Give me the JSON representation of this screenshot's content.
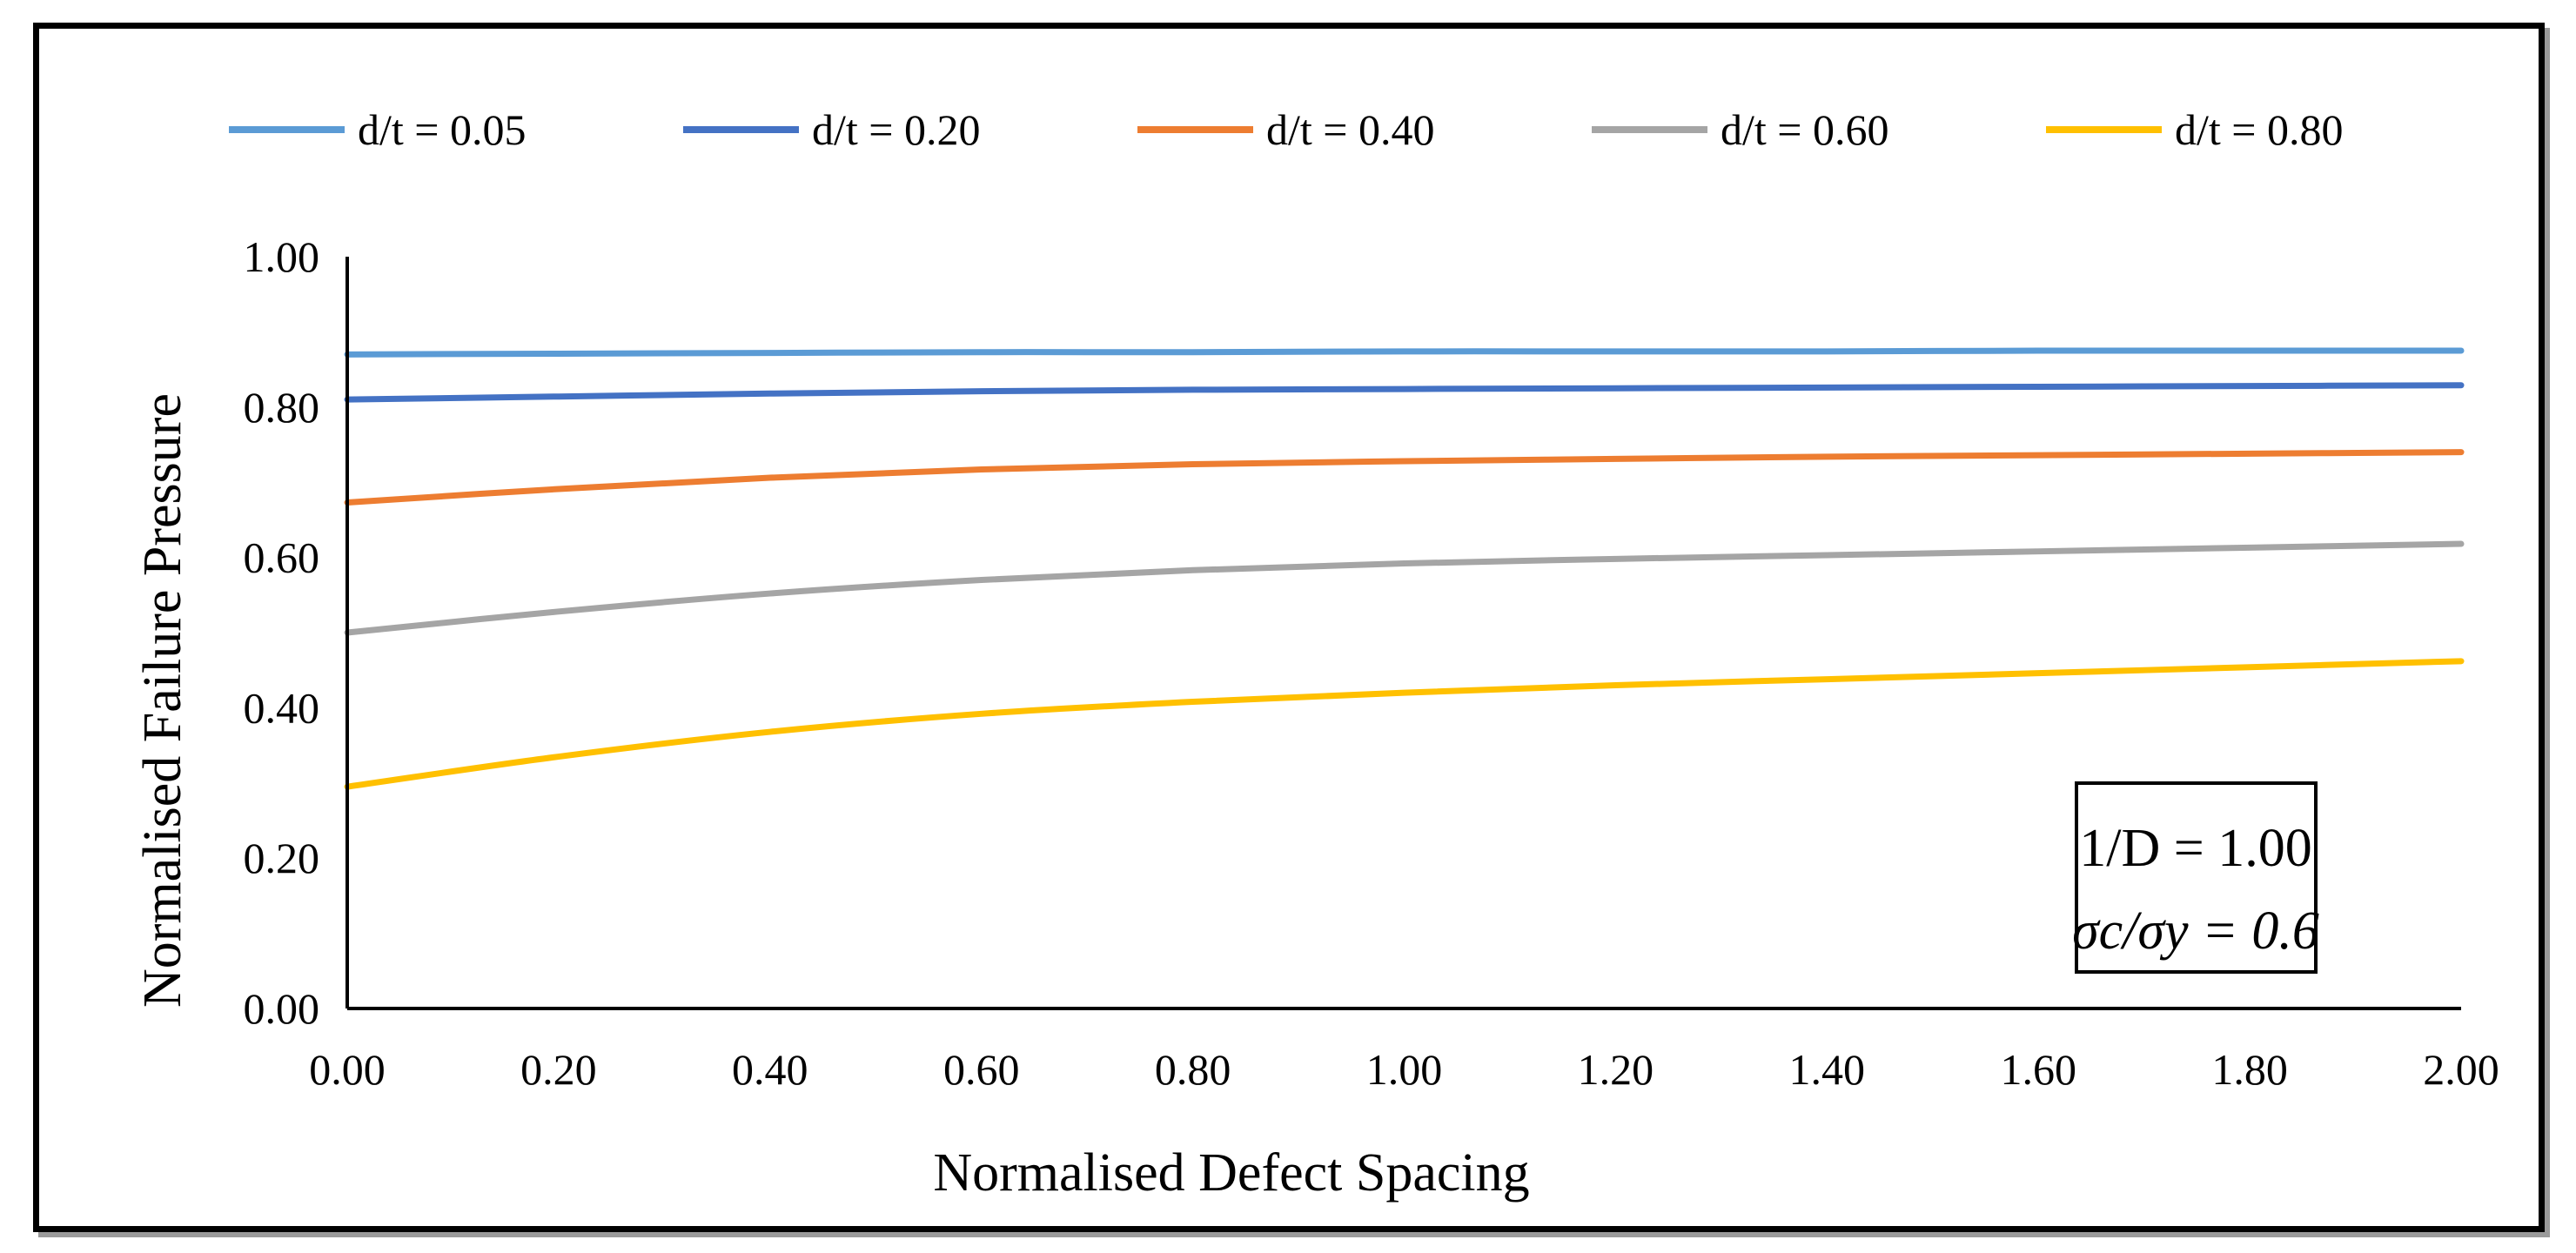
{
  "chart_data": {
    "type": "line",
    "title": "",
    "xlabel": "Normalised Defect Spacing",
    "ylabel": "Normalised Failure Pressure",
    "xlim": [
      0,
      2
    ],
    "ylim": [
      0,
      1
    ],
    "x_ticks": [
      "0.00",
      "0.20",
      "0.40",
      "0.60",
      "0.80",
      "1.00",
      "1.20",
      "1.40",
      "1.60",
      "1.80",
      "2.00"
    ],
    "y_ticks": [
      "0.00",
      "0.20",
      "0.40",
      "0.60",
      "0.80",
      "1.00"
    ],
    "legend_position": "top",
    "x": [
      0.0,
      0.2,
      0.4,
      0.6,
      0.8,
      1.0,
      1.2,
      1.4,
      1.6,
      1.8,
      2.0
    ],
    "series": [
      {
        "name": "d/t = 0.05",
        "color": "#5b9bd5",
        "values": [
          0.87,
          0.871,
          0.872,
          0.873,
          0.873,
          0.874,
          0.874,
          0.874,
          0.875,
          0.875,
          0.875
        ]
      },
      {
        "name": "d/t = 0.20",
        "color": "#4472c4",
        "values": [
          0.81,
          0.814,
          0.818,
          0.821,
          0.823,
          0.824,
          0.825,
          0.826,
          0.827,
          0.828,
          0.829
        ]
      },
      {
        "name": "d/t = 0.40",
        "color": "#ed7d31",
        "values": [
          0.673,
          0.691,
          0.706,
          0.717,
          0.724,
          0.728,
          0.731,
          0.734,
          0.736,
          0.738,
          0.74
        ]
      },
      {
        "name": "d/t = 0.60",
        "color": "#a5a5a5",
        "values": [
          0.5,
          0.528,
          0.552,
          0.57,
          0.583,
          0.592,
          0.598,
          0.603,
          0.608,
          0.613,
          0.618
        ]
      },
      {
        "name": "d/t = 0.80",
        "color": "#ffc000",
        "values": [
          0.295,
          0.335,
          0.368,
          0.392,
          0.408,
          0.42,
          0.43,
          0.438,
          0.446,
          0.454,
          0.462
        ]
      }
    ],
    "annotation": {
      "line1": "1/D = 1.00",
      "line2": "σc/σy = 0.6"
    }
  }
}
